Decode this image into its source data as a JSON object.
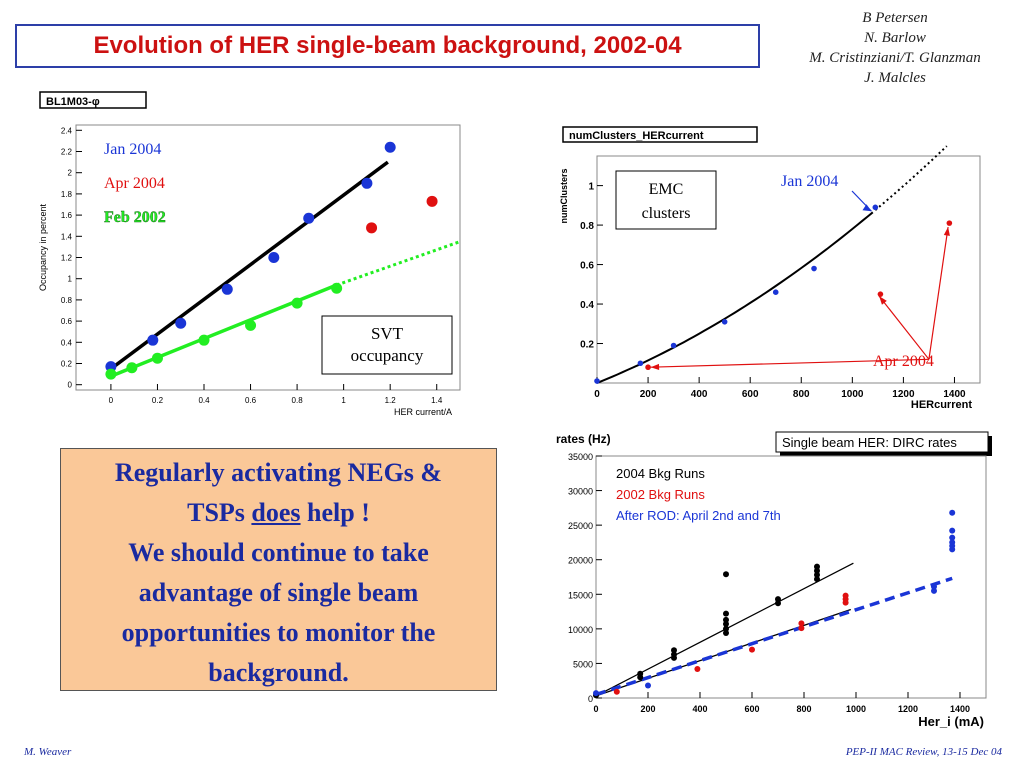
{
  "slide": {
    "title": "Evolution of HER single-beam background, 2002-04",
    "authors": [
      "B Petersen",
      "N. Barlow",
      "M. Cristinziani/T. Glanzman",
      "J. Malcles"
    ],
    "callout": {
      "line1": "Regularly activating NEGs &",
      "line2a": "TSPs ",
      "line2b": "does",
      "line2c": " help !",
      "line3": "We should continue to take",
      "line4": "advantage of single beam",
      "line5": "opportunities to monitor the",
      "line6": "background."
    },
    "footer_left": "M. Weaver",
    "footer_right": "PEP-II  MAC Review, 13-15 Dec 04"
  },
  "colors": {
    "black": "#000000",
    "blue": "#1a35d6",
    "red": "#e01010",
    "green": "#22ee22",
    "title": "#cc1111"
  },
  "chart_data": [
    {
      "type": "scatter",
      "title": "BL1M03-φ",
      "xlabel": "HER current/A",
      "ylabel": "Occupancy in percent",
      "xlim": [
        -0.15,
        1.5
      ],
      "ylim": [
        -0.05,
        2.45
      ],
      "xticks": [
        "0",
        "0.2",
        "0.4",
        "0.6",
        "0.8",
        "1",
        "1.2",
        "1.4"
      ],
      "xtick_values": [
        0,
        0.2,
        0.4,
        0.6,
        0.8,
        1.0,
        1.2,
        1.4
      ],
      "yticks": [
        "0",
        "0.2",
        "0.4",
        "0.6",
        "0.8",
        "1",
        "1.2",
        "1.4",
        "1.6",
        "1.8",
        "2",
        "2.2",
        "2.4"
      ],
      "ytick_values": [
        0,
        0.2,
        0.4,
        0.6,
        0.8,
        1.0,
        1.2,
        1.4,
        1.6,
        1.8,
        2.0,
        2.2,
        2.4
      ],
      "legend": [
        {
          "name": "Jan 2004",
          "color": "#1a35d6"
        },
        {
          "name": "Apr 2004",
          "color": "#e01010"
        },
        {
          "name": "Feb 2002",
          "color": "#22ee22"
        }
      ],
      "annotation": [
        "SVT",
        "occupancy"
      ],
      "series": [
        {
          "name": "Jan 2004",
          "color": "#1a35d6",
          "x": [
            0.0,
            0.18,
            0.3,
            0.5,
            0.7,
            0.85,
            1.1,
            1.2
          ],
          "y": [
            0.17,
            0.42,
            0.58,
            0.9,
            1.2,
            1.57,
            1.9,
            2.24
          ]
        },
        {
          "name": "Apr 2004",
          "color": "#e01010",
          "x": [
            1.12,
            1.38
          ],
          "y": [
            1.48,
            1.73
          ]
        },
        {
          "name": "Feb 2002",
          "color": "#22ee22",
          "x": [
            0.0,
            0.09,
            0.2,
            0.4,
            0.6,
            0.8,
            0.97
          ],
          "y": [
            0.1,
            0.16,
            0.25,
            0.42,
            0.56,
            0.77,
            0.91
          ]
        }
      ],
      "fits": [
        {
          "color": "#000000",
          "x": [
            0.0,
            1.19
          ],
          "y": [
            0.15,
            2.1
          ],
          "dotted": false
        },
        {
          "color": "#22ee22",
          "x": [
            0.0,
            0.97
          ],
          "y": [
            0.08,
            0.94
          ],
          "dotted": false
        },
        {
          "color": "#22ee22",
          "x": [
            0.97,
            1.5
          ],
          "y": [
            0.94,
            1.35
          ],
          "dotted": true
        }
      ]
    },
    {
      "type": "scatter",
      "title": "numClusters_HERcurrent",
      "xlabel": "HERcurrent",
      "ylabel": "numClusters",
      "xlim": [
        0,
        1500
      ],
      "ylim": [
        0,
        1.15
      ],
      "xticks": [
        "0",
        "200",
        "400",
        "600",
        "800",
        "1000",
        "1200",
        "1400"
      ],
      "xtick_values": [
        0,
        200,
        400,
        600,
        800,
        1000,
        1200,
        1400
      ],
      "yticks": [
        "0.2",
        "0.4",
        "0.6",
        "0.8",
        "1"
      ],
      "ytick_values": [
        0.2,
        0.4,
        0.6,
        0.8,
        1.0
      ],
      "annotation": [
        "EMC",
        "clusters"
      ],
      "labels": [
        "Jan 2004",
        "Apr 2004"
      ],
      "series": [
        {
          "name": "Jan 2004",
          "color": "#1a35d6",
          "x": [
            0,
            170,
            300,
            500,
            700,
            850,
            1090
          ],
          "y": [
            0.01,
            0.1,
            0.19,
            0.31,
            0.46,
            0.58,
            0.89
          ]
        },
        {
          "name": "Apr 2004",
          "color": "#e01010",
          "x": [
            200,
            1110,
            1380
          ],
          "y": [
            0.08,
            0.45,
            0.81
          ]
        }
      ],
      "fit": {
        "a": 0.00052,
        "b": 2.6e-07,
        "solid_to": 1090,
        "dotted_to": 1370
      }
    },
    {
      "type": "scatter",
      "title": "Single beam HER: DIRC rates",
      "xlabel": "Her_i (mA)",
      "ylabel": "rates (Hz)",
      "xlim": [
        0,
        1500
      ],
      "ylim": [
        0,
        35000
      ],
      "xticks": [
        "0",
        "200",
        "400",
        "600",
        "800",
        "1000",
        "1200",
        "1400"
      ],
      "xtick_values": [
        0,
        200,
        400,
        600,
        800,
        1000,
        1200,
        1400
      ],
      "yticks": [
        "0",
        "5000",
        "10000",
        "15000",
        "20000",
        "25000",
        "30000",
        "35000"
      ],
      "ytick_values": [
        0,
        5000,
        10000,
        15000,
        20000,
        25000,
        30000,
        35000
      ],
      "legend": [
        {
          "name": "2004 Bkg Runs",
          "color": "#000000"
        },
        {
          "name": "2002 Bkg Runs",
          "color": "#e01010"
        },
        {
          "name": "After ROD: April 2nd and 7th",
          "color": "#1a35d6"
        }
      ],
      "series": [
        {
          "name": "2004 Bkg Runs",
          "color": "#000000",
          "x": [
            0,
            170,
            170,
            300,
            300,
            300,
            500,
            500,
            500,
            500,
            500,
            500,
            700,
            700,
            850,
            850,
            850,
            850
          ],
          "y": [
            400,
            3000,
            3500,
            5800,
            6300,
            6900,
            9400,
            10000,
            10700,
            11300,
            12200,
            17900,
            13700,
            14300,
            17200,
            17800,
            18400,
            19000
          ]
        },
        {
          "name": "2002 Bkg Runs",
          "color": "#e01010",
          "x": [
            80,
            390,
            600,
            790,
            790,
            960,
            960,
            960
          ],
          "y": [
            900,
            4200,
            7000,
            10100,
            10800,
            13800,
            14300,
            14800
          ]
        },
        {
          "name": "After ROD: April 2nd and 7th",
          "color": "#1a35d6",
          "x": [
            0,
            200,
            1300,
            1300,
            1370,
            1370,
            1370,
            1370,
            1370,
            1370
          ],
          "y": [
            700,
            1800,
            15500,
            16100,
            21500,
            22000,
            22500,
            23200,
            24200,
            26800
          ]
        }
      ],
      "fits": [
        {
          "color": "#000000",
          "x": [
            0,
            980
          ],
          "y": [
            300,
            12800
          ],
          "dashed": false
        },
        {
          "color": "#000000",
          "x": [
            0,
            990
          ],
          "y": [
            300,
            19500
          ],
          "dashed": false
        },
        {
          "color": "#1a35d6",
          "x": [
            0,
            1370
          ],
          "y": [
            500,
            17300
          ],
          "dashed": true
        }
      ]
    }
  ]
}
